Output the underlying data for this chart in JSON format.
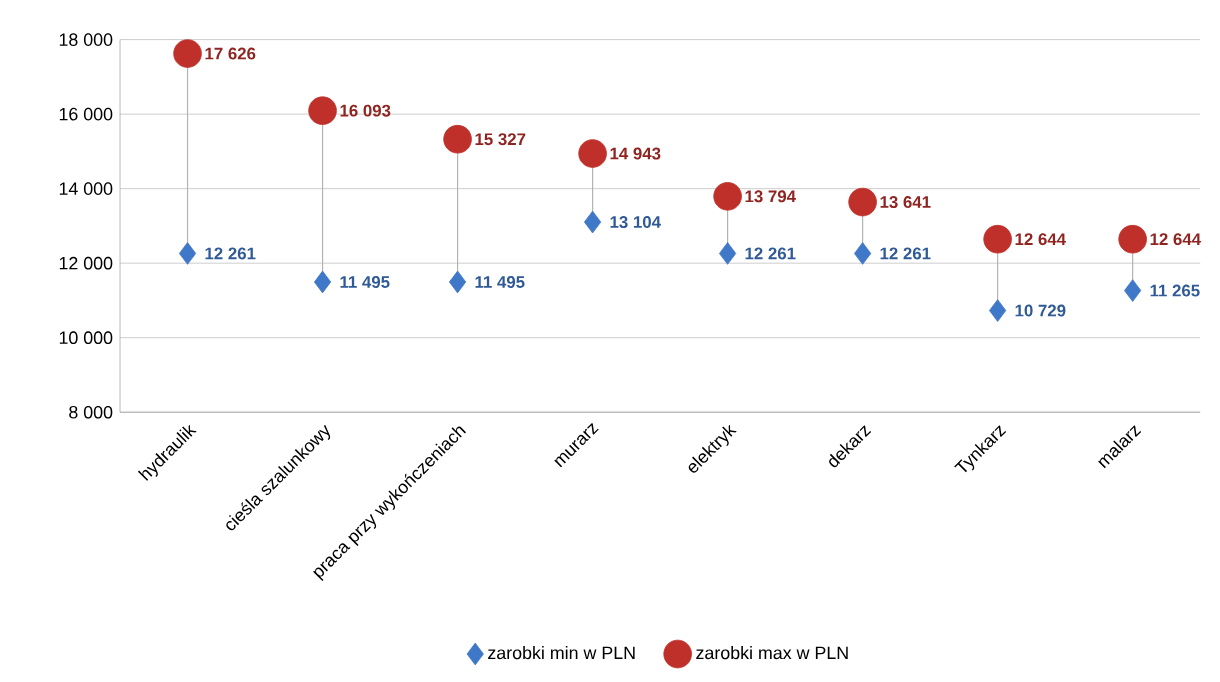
{
  "chart_data": {
    "type": "scatter",
    "categories": [
      "hydraulik",
      "cieśla szalunkowy",
      "praca przy wykończeniach",
      "murarz",
      "elektryk",
      "dekarz",
      "Tynkarz",
      "malarz"
    ],
    "series": [
      {
        "name": "zarobki min w PLN",
        "color": "#3f78c8",
        "marker": "diamond",
        "values": [
          12261,
          11495,
          11495,
          13104,
          12261,
          12261,
          10729,
          11265
        ],
        "value_labels": [
          "12 261",
          "11 495",
          "11 495",
          "13 104",
          "12 261",
          "12 261",
          "10 729",
          "11 265"
        ]
      },
      {
        "name": "zarobki max w PLN",
        "color": "#c0302a",
        "marker": "circle",
        "values": [
          17626,
          16093,
          15327,
          14943,
          13794,
          13641,
          12644,
          12644
        ],
        "value_labels": [
          "17 626",
          "16 093",
          "15 327",
          "14 943",
          "13 794",
          "13 641",
          "12 644",
          "12 644"
        ]
      }
    ],
    "ylim": [
      8000,
      18000
    ],
    "yticks": [
      {
        "value": 8000,
        "label": "8 000"
      },
      {
        "value": 10000,
        "label": "10 000"
      },
      {
        "value": 12000,
        "label": "12 000"
      },
      {
        "value": 14000,
        "label": "14 000"
      },
      {
        "value": 16000,
        "label": "16 000"
      },
      {
        "value": 18000,
        "label": "18 000"
      }
    ],
    "grid": "y",
    "legend": "bottom"
  }
}
